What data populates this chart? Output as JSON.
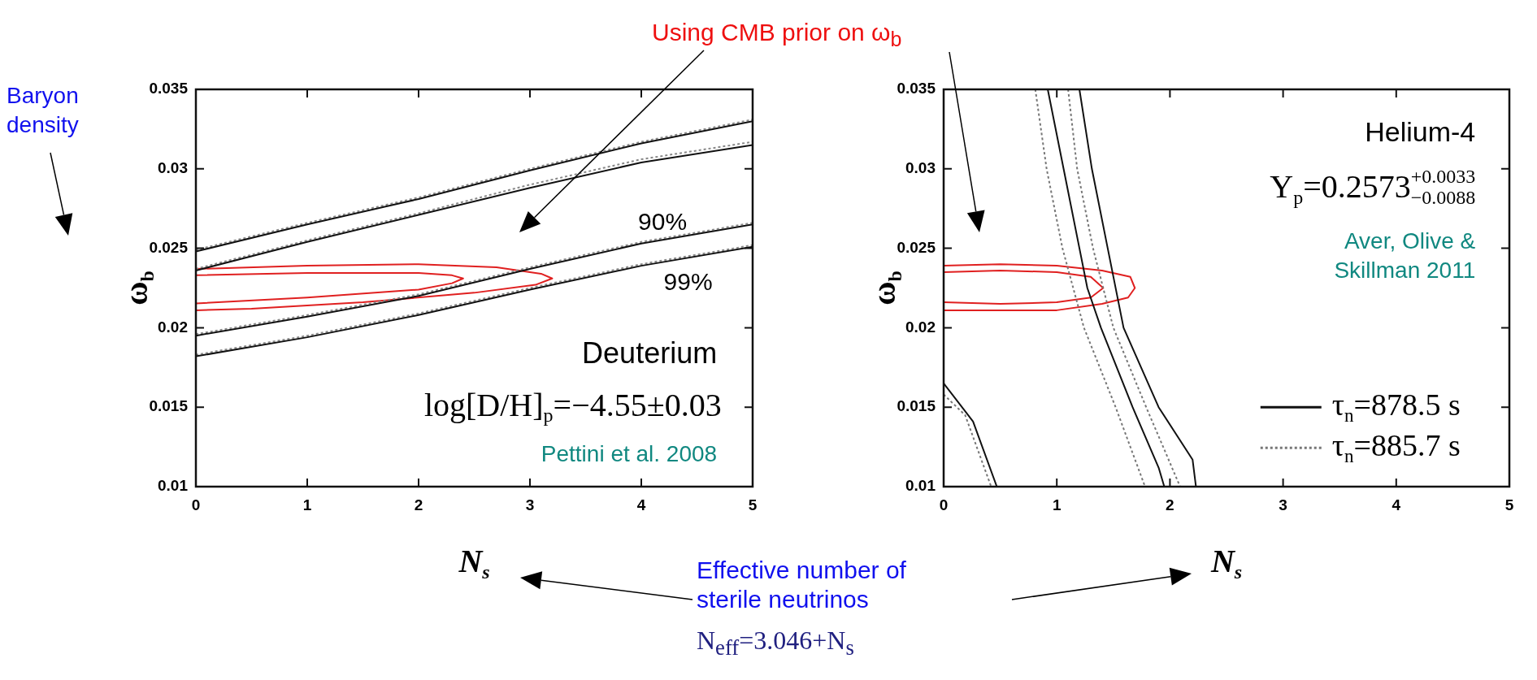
{
  "chart_data": [
    {
      "type": "line",
      "xlabel": "N$_{s}$",
      "ylabel": "ω$_{b}$",
      "xlim": [
        0,
        5
      ],
      "ylim": [
        0.01,
        0.035
      ],
      "xticks": [
        0,
        1,
        2,
        3,
        4,
        5
      ],
      "yticks": [
        0.01,
        0.015,
        0.02,
        0.025,
        0.03,
        0.035
      ],
      "marker": "none",
      "line_style": "solid",
      "series": [
        {
          "color": "#111111",
          "x": [
            0,
            1,
            2,
            3,
            4,
            5
          ],
          "values": [
            0.0248,
            0.0265,
            0.0281,
            0.0299,
            0.0316,
            0.033
          ]
        },
        {
          "color": "#111111",
          "x": [
            0,
            1,
            2,
            3,
            4,
            5
          ],
          "values": [
            0.0236,
            0.0254,
            0.0271,
            0.0288,
            0.0304,
            0.0315
          ]
        },
        {
          "color": "#111111",
          "x": [
            0,
            1,
            2,
            3,
            4,
            5
          ],
          "values": [
            0.0195,
            0.0207,
            0.022,
            0.0237,
            0.0253,
            0.0265
          ]
        },
        {
          "color": "#111111",
          "x": [
            0,
            1,
            2,
            3,
            4,
            5
          ],
          "values": [
            0.0182,
            0.0194,
            0.0208,
            0.0224,
            0.0239,
            0.0251
          ]
        },
        {
          "color": "#888888",
          "line_style": "dotted",
          "x": [
            0,
            1,
            2,
            3,
            4,
            5
          ],
          "values": [
            0.0249,
            0.0266,
            0.0282,
            0.03,
            0.0317,
            0.0331
          ]
        },
        {
          "color": "#888888",
          "line_style": "dotted",
          "x": [
            0,
            1,
            2,
            3,
            4,
            5
          ],
          "values": [
            0.0237,
            0.0255,
            0.0272,
            0.029,
            0.0306,
            0.0317
          ]
        },
        {
          "color": "#888888",
          "line_style": "dotted",
          "x": [
            0,
            1,
            2,
            3,
            4,
            5
          ],
          "values": [
            0.0196,
            0.0208,
            0.0221,
            0.0238,
            0.0254,
            0.0266
          ]
        },
        {
          "color": "#888888",
          "line_style": "dotted",
          "x": [
            0,
            1,
            2,
            3,
            4,
            5
          ],
          "values": [
            0.0183,
            0.0195,
            0.0209,
            0.0225,
            0.024,
            0.0252
          ]
        },
        {
          "color": "#e02020",
          "x": [
            0,
            1,
            2,
            2.3,
            2.4,
            2.3,
            2,
            1,
            0
          ],
          "values": [
            0.0233,
            0.02345,
            0.02345,
            0.0233,
            0.0231,
            0.0228,
            0.0224,
            0.0219,
            0.02153
          ]
        },
        {
          "color": "#e02020",
          "x": [
            0,
            1,
            2,
            2.7,
            3.1,
            3.2,
            3.05,
            2.5,
            1.5,
            0.5,
            0
          ],
          "values": [
            0.0237,
            0.0239,
            0.024,
            0.0238,
            0.0234,
            0.0231,
            0.0227,
            0.0222,
            0.0216,
            0.0212,
            0.0211
          ]
        }
      ],
      "annotations": [
        "Deuterium",
        "log[D/H]$_{p}$=−4.55±0.03",
        "Pettini et al. 2008",
        "90%",
        "99%",
        "Baryon density",
        "Using CMB prior on ω$_{b}$",
        "Effective number of sterile neutrinos",
        "N$_{eff}$=3.046+N$_{s}$"
      ]
    },
    {
      "type": "line",
      "xlabel": "N$_{s}$",
      "ylabel": "ω$_{b}$",
      "xlim": [
        0,
        5
      ],
      "ylim": [
        0.01,
        0.035
      ],
      "xticks": [
        0,
        1,
        2,
        3,
        4,
        5
      ],
      "yticks": [
        0.01,
        0.015,
        0.02,
        0.025,
        0.03,
        0.035
      ],
      "marker": "none",
      "line_style": "solid",
      "legend": "bottom right",
      "series": [
        {
          "name": "τ$_{n}$=878.5 s",
          "color": "#111111",
          "x": [
            0.92,
            1.06,
            1.2,
            1.27,
            1.39,
            1.67,
            1.9,
            1.95
          ],
          "values": [
            0.035,
            0.03,
            0.025,
            0.0225,
            0.02,
            0.015,
            0.0112,
            0.01
          ]
        },
        {
          "color": "#111111",
          "x": [
            1.2,
            1.31,
            1.45,
            1.59,
            1.9,
            2.2,
            2.23
          ],
          "values": [
            0.035,
            0.03,
            0.025,
            0.02,
            0.015,
            0.0117,
            0.01
          ]
        },
        {
          "color": "#111111",
          "x": [
            0,
            0.26,
            0.47
          ],
          "values": [
            0.0165,
            0.0141,
            0.01
          ]
        },
        {
          "name": "τ$_{n}$=885.7 s",
          "color": "#777777",
          "line_style": "dotted",
          "x": [
            0.81,
            0.91,
            1.05,
            1.24,
            1.52,
            1.78
          ],
          "values": [
            0.035,
            0.03,
            0.025,
            0.02,
            0.015,
            0.01
          ]
        },
        {
          "color": "#777777",
          "line_style": "dotted",
          "x": [
            1.1,
            1.18,
            1.32,
            1.5,
            1.79,
            2.09
          ],
          "values": [
            0.035,
            0.03,
            0.025,
            0.02,
            0.015,
            0.01
          ]
        },
        {
          "color": "#777777",
          "line_style": "dotted",
          "x": [
            0,
            0.19,
            0.42
          ],
          "values": [
            0.0158,
            0.0145,
            0.01
          ]
        },
        {
          "color": "#e02020",
          "x": [
            0,
            0.5,
            1,
            1.3,
            1.41,
            1.3,
            1,
            0.5,
            0
          ],
          "values": [
            0.0235,
            0.0236,
            0.0235,
            0.0232,
            0.0225,
            0.0219,
            0.0216,
            0.0215,
            0.0216
          ]
        },
        {
          "color": "#e02020",
          "x": [
            0,
            0.5,
            1,
            1.4,
            1.65,
            1.69,
            1.63,
            1.4,
            1,
            0.5,
            0
          ],
          "values": [
            0.0239,
            0.024,
            0.0239,
            0.0236,
            0.0232,
            0.0225,
            0.0219,
            0.0215,
            0.0211,
            0.0211,
            0.0211
          ]
        }
      ],
      "annotations": [
        "Helium-4",
        "Y$_{p}$=0.2573$^{+0.0033}$$_{−0.0088}$",
        "Aver, Olive & Skillman 2011"
      ]
    }
  ]
}
